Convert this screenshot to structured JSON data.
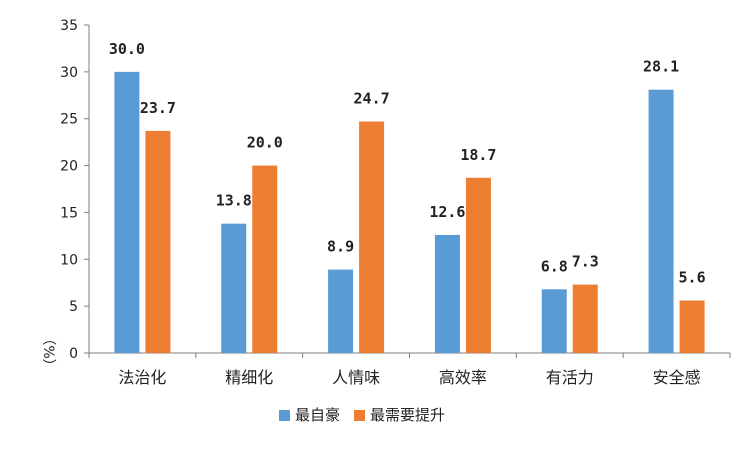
{
  "chart_data": {
    "type": "bar",
    "categories": [
      "法治化",
      "精细化",
      "人情味",
      "高效率",
      "有活力",
      "安全感"
    ],
    "series": [
      {
        "name": "最自豪",
        "color": "#5b9bd5",
        "values": [
          30.0,
          13.8,
          8.9,
          12.6,
          6.8,
          28.1
        ]
      },
      {
        "name": "最需要提升",
        "color": "#ed7d31",
        "values": [
          23.7,
          20.0,
          24.7,
          18.7,
          7.3,
          5.6
        ]
      }
    ],
    "ylim": [
      0,
      35
    ],
    "yticks": [
      0,
      5,
      10,
      15,
      20,
      25,
      30,
      35
    ],
    "ylabel": "（%）",
    "grid": false,
    "legend": "bottom",
    "data_labels": true
  }
}
